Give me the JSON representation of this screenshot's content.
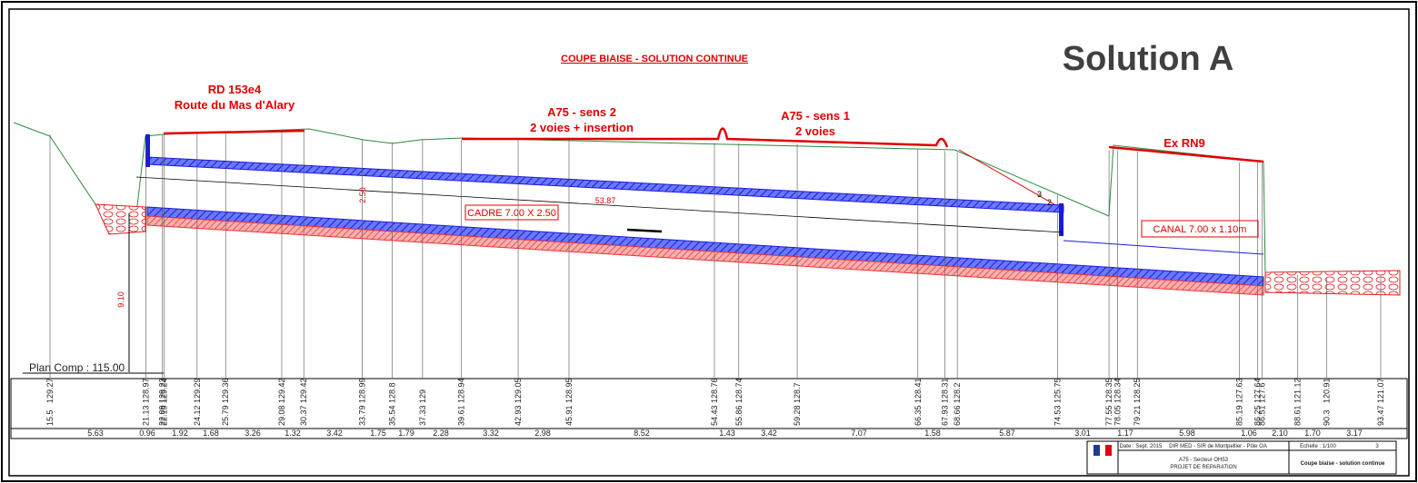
{
  "header": {
    "title": "COUPE BIAISE - SOLUTION CONTINUE",
    "solution": "Solution A"
  },
  "roads": [
    {
      "name": "RD 153e4",
      "detail": "Route du Mas d'Alary"
    },
    {
      "name": "A75 - sens 2",
      "detail": "2 voies + insertion"
    },
    {
      "name": "A75 - sens 1",
      "detail": "2 voies"
    },
    {
      "name": "Ex RN9"
    }
  ],
  "structures": {
    "cadre": "CADRE 7.00 X 2.50",
    "canal": "CANAL 7.00 x 1.10m"
  },
  "dimensions": {
    "length": "53.87",
    "height": "2.50",
    "depth": "9.10",
    "slope_v": "3",
    "slope_h": "2"
  },
  "reference": "Plan Comp : 115.00",
  "stations": [
    {
      "distance": 15.5,
      "altitude": 129.27
    },
    {
      "distance": 21.13,
      "altitude": 128.97
    },
    {
      "distance": 22.09,
      "altitude": 129.23
    },
    {
      "distance": 22.19,
      "altitude": 129.24
    },
    {
      "distance": 24.12,
      "altitude": 129.29
    },
    {
      "distance": 25.79,
      "altitude": 129.36
    },
    {
      "distance": 29.08,
      "altitude": 129.42
    },
    {
      "distance": 30.37,
      "altitude": 129.42
    },
    {
      "distance": 33.79,
      "altitude": 128.99
    },
    {
      "distance": 35.54,
      "altitude": 128.8
    },
    {
      "distance": 37.33,
      "altitude": 129.0
    },
    {
      "distance": 39.61,
      "altitude": 128.94
    },
    {
      "distance": 42.93,
      "altitude": 129.05
    },
    {
      "distance": 45.91,
      "altitude": 128.95
    },
    {
      "distance": 54.43,
      "altitude": 128.76
    },
    {
      "distance": 55.86,
      "altitude": 128.74
    },
    {
      "distance": 59.28,
      "altitude": 128.7
    },
    {
      "distance": 66.35,
      "altitude": 128.41
    },
    {
      "distance": 67.93,
      "altitude": 128.31
    },
    {
      "distance": 68.66,
      "altitude": 128.2
    },
    {
      "distance": 74.53,
      "altitude": 125.75
    },
    {
      "distance": 77.55,
      "altitude": 128.35
    },
    {
      "distance": 78.05,
      "altitude": 128.34
    },
    {
      "distance": 79.21,
      "altitude": 128.25
    },
    {
      "distance": 85.19,
      "altitude": 127.63
    },
    {
      "distance": 86.25,
      "altitude": 127.64
    },
    {
      "distance": 86.51,
      "altitude": 127.6
    },
    {
      "distance": 88.61,
      "altitude": 121.12
    },
    {
      "distance": 90.3,
      "altitude": 120.91
    },
    {
      "distance": 93.47,
      "altitude": 121.07
    }
  ],
  "segments": [
    "5.63",
    "0.96",
    "1.92",
    "1.68",
    "3.26",
    "1.32",
    "3.42",
    "1.75",
    "1.79",
    "2.28",
    "3.32",
    "2.98",
    "8.52",
    "1.43",
    "3.42",
    "7.07",
    "1.58",
    "5.87",
    "3.01",
    "1.17",
    "5.98",
    "1.06",
    "2.10",
    "1.70",
    "3.17"
  ],
  "cartouche": {
    "date": "Date : Sept. 2015",
    "office": "DIR MED - SIR de Montpellier - Pôle OA",
    "scale": "Echelle : 1/100",
    "sheet": "3",
    "sector": "A75 - Secteur OH53",
    "project": "PROJET DE REPARATION",
    "drawing": "Coupe biaise - solution continue"
  }
}
